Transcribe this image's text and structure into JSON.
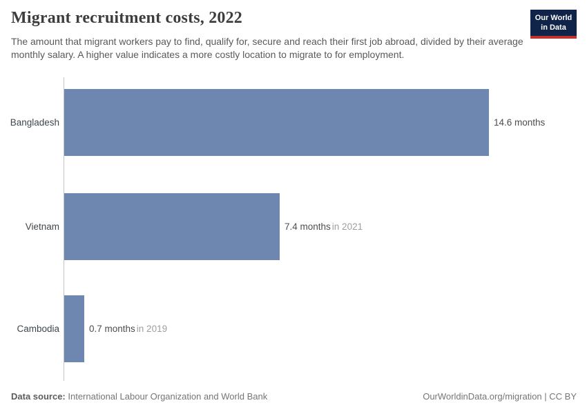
{
  "header": {
    "title": "Migrant recruitment costs, 2022",
    "subtitle": "The amount that migrant workers pay to find, qualify for, secure and reach their first job abroad, divided by their average monthly salary. A higher value indicates a more costly location to migrate to for employment.",
    "logo": {
      "line1": "Our World",
      "line2": "in Data"
    }
  },
  "chart_data": {
    "type": "bar",
    "orientation": "horizontal",
    "title": "Migrant recruitment costs, 2022",
    "categories": [
      "Bangladesh",
      "Vietnam",
      "Cambodia"
    ],
    "values": [
      14.6,
      7.4,
      0.7
    ],
    "unit": "months",
    "value_labels": [
      "14.6 months",
      "7.4 months",
      "0.7 months"
    ],
    "year_notes": [
      "",
      "in 2021",
      "in 2019"
    ],
    "xlim": [
      0,
      14.6
    ],
    "grid": false,
    "legend": false,
    "bar_color": "#6d87b0"
  },
  "colors": {
    "bar": "#6d87b0",
    "axis": "#c4c4c4",
    "logo_navy": "#102348",
    "logo_red": "#c0322e"
  },
  "footer": {
    "source_label": "Data source:",
    "source_text": "International Labour Organization and World Bank",
    "right_text": "OurWorldinData.org/migration | CC BY"
  }
}
